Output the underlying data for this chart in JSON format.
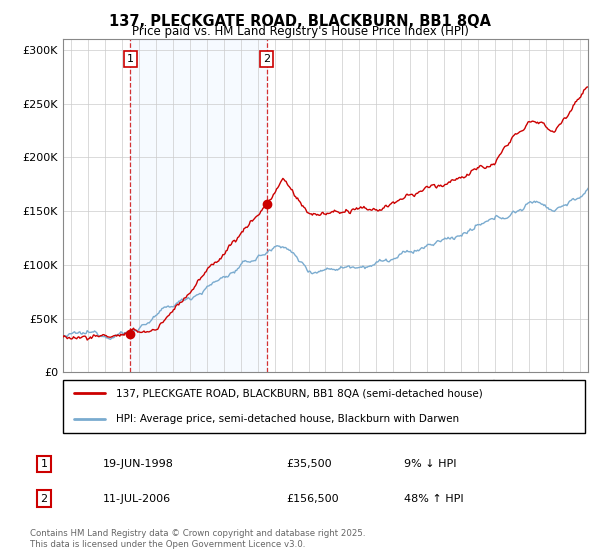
{
  "title": "137, PLECKGATE ROAD, BLACKBURN, BB1 8QA",
  "subtitle": "Price paid vs. HM Land Registry's House Price Index (HPI)",
  "legend_line1": "137, PLECKGATE ROAD, BLACKBURN, BB1 8QA (semi-detached house)",
  "legend_line2": "HPI: Average price, semi-detached house, Blackburn with Darwen",
  "annotation1_date": "19-JUN-1998",
  "annotation1_price": "£35,500",
  "annotation1_hpi": "9% ↓ HPI",
  "annotation2_date": "11-JUL-2006",
  "annotation2_price": "£156,500",
  "annotation2_hpi": "48% ↑ HPI",
  "footer": "Contains HM Land Registry data © Crown copyright and database right 2025.\nThis data is licensed under the Open Government Licence v3.0.",
  "house_color": "#cc0000",
  "hpi_color": "#7aabcf",
  "shade_color": "#ddeeff",
  "vline_color": "#cc0000",
  "dot_color": "#cc0000",
  "ylim": [
    0,
    310000
  ],
  "yticks": [
    0,
    50000,
    100000,
    150000,
    200000,
    250000,
    300000
  ],
  "ytick_labels": [
    "£0",
    "£50K",
    "£100K",
    "£150K",
    "£200K",
    "£250K",
    "£300K"
  ],
  "sale1_x": 1998.47,
  "sale1_y": 35500,
  "sale2_x": 2006.53,
  "sale2_y": 156500,
  "xmin": 1994.5,
  "xmax": 2025.5
}
